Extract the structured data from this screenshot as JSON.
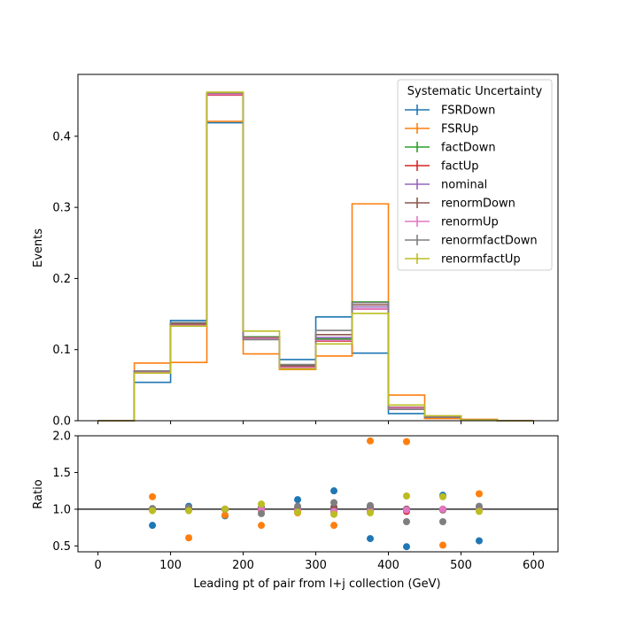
{
  "chart_data": {
    "type": "step-histogram-with-ratio",
    "xlabel": "Leading pt of pair from l+j collection (GeV)",
    "x_ticks": [
      "0",
      "100",
      "200",
      "300",
      "400",
      "500",
      "600"
    ],
    "bin_edges": [
      0,
      50,
      100,
      150,
      200,
      250,
      300,
      350,
      400,
      450,
      500,
      550,
      600
    ],
    "top": {
      "ylabel": "Events",
      "ylim": [
        0,
        0.487
      ],
      "y_ticks": [
        "0.0",
        "0.1",
        "0.2",
        "0.3",
        "0.4"
      ],
      "legend": {
        "title": "Systematic Uncertainty",
        "placement": "top-right"
      },
      "series": [
        {
          "name": "FSRDown",
          "color": "#1f77b4",
          "values": [
            0.0,
            0.054,
            0.141,
            0.419,
            0.118,
            0.086,
            0.146,
            0.095,
            0.01,
            0.004,
            0.001,
            0.0
          ]
        },
        {
          "name": "FSRUp",
          "color": "#ff7f0e",
          "values": [
            0.0,
            0.081,
            0.082,
            0.421,
            0.094,
            0.072,
            0.091,
            0.305,
            0.036,
            0.003,
            0.002,
            0.0
          ]
        },
        {
          "name": "factDown",
          "color": "#2ca02c",
          "values": [
            0.0,
            0.069,
            0.137,
            0.46,
            0.118,
            0.078,
            0.115,
            0.167,
            0.019,
            0.006,
            0.001,
            0.0
          ]
        },
        {
          "name": "factUp",
          "color": "#d62728",
          "values": [
            0.0,
            0.068,
            0.134,
            0.458,
            0.115,
            0.074,
            0.112,
            0.157,
            0.018,
            0.006,
            0.001,
            0.0
          ]
        },
        {
          "name": "nominal",
          "color": "#9467bd",
          "values": [
            0.0,
            0.069,
            0.135,
            0.459,
            0.116,
            0.076,
            0.117,
            0.16,
            0.019,
            0.006,
            0.001,
            0.0
          ]
        },
        {
          "name": "renormDown",
          "color": "#8c564b",
          "values": [
            0.0,
            0.069,
            0.136,
            0.46,
            0.117,
            0.077,
            0.121,
            0.163,
            0.019,
            0.005,
            0.001,
            0.0
          ]
        },
        {
          "name": "renormUp",
          "color": "#e377c2",
          "values": [
            0.0,
            0.068,
            0.134,
            0.459,
            0.116,
            0.075,
            0.113,
            0.157,
            0.018,
            0.006,
            0.001,
            0.0
          ]
        },
        {
          "name": "renormfactDown",
          "color": "#7f7f7f",
          "values": [
            0.0,
            0.07,
            0.138,
            0.461,
            0.114,
            0.079,
            0.127,
            0.166,
            0.016,
            0.005,
            0.001,
            0.0
          ]
        },
        {
          "name": "renormfactUp",
          "color": "#bcbd22",
          "values": [
            0.0,
            0.067,
            0.133,
            0.462,
            0.126,
            0.073,
            0.108,
            0.151,
            0.022,
            0.007,
            0.001,
            0.0
          ]
        }
      ]
    },
    "bottom": {
      "ylabel": "Ratio",
      "ylim": [
        0.42,
        2.0
      ],
      "y_ticks": [
        "0.5",
        "1.0",
        "1.5",
        "2.0"
      ],
      "reference_line": 1.0,
      "bin_centers": [
        75,
        125,
        175,
        225,
        275,
        325,
        375,
        425,
        475,
        525
      ],
      "series": [
        {
          "name": "FSRDown",
          "color": "#1f77b4",
          "values": [
            0.78,
            1.04,
            0.91,
            1.02,
            1.13,
            1.25,
            0.6,
            0.49,
            1.19,
            0.57
          ]
        },
        {
          "name": "FSRUp",
          "color": "#ff7f0e",
          "values": [
            1.17,
            0.61,
            0.92,
            0.78,
            0.95,
            0.78,
            1.93,
            1.92,
            0.51,
            1.21
          ]
        },
        {
          "name": "factDown",
          "color": "#2ca02c",
          "values": [
            1.0,
            1.01,
            1.0,
            1.02,
            1.02,
            0.98,
            1.04,
            1.0,
            1.0,
            1.0
          ]
        },
        {
          "name": "factUp",
          "color": "#d62728",
          "values": [
            0.99,
            0.99,
            1.0,
            0.99,
            0.98,
            0.96,
            0.98,
            0.97,
            1.0,
            1.0
          ]
        },
        {
          "name": "nominal",
          "color": "#9467bd",
          "values": [
            1.0,
            1.0,
            1.0,
            1.0,
            1.0,
            1.0,
            1.0,
            1.0,
            1.0,
            1.0
          ]
        },
        {
          "name": "renormDown",
          "color": "#8c564b",
          "values": [
            1.0,
            1.01,
            1.0,
            1.01,
            1.01,
            1.03,
            1.02,
            1.0,
            0.99,
            1.0
          ]
        },
        {
          "name": "renormUp",
          "color": "#e377c2",
          "values": [
            0.99,
            0.99,
            1.0,
            1.0,
            0.99,
            0.97,
            0.98,
            0.99,
            1.0,
            1.0
          ]
        },
        {
          "name": "renormfactDown",
          "color": "#7f7f7f",
          "values": [
            1.01,
            1.02,
            1.0,
            0.94,
            1.04,
            1.09,
            1.05,
            0.83,
            0.83,
            1.04
          ]
        },
        {
          "name": "renormfactUp",
          "color": "#bcbd22",
          "values": [
            0.98,
            0.98,
            1.0,
            1.07,
            0.96,
            0.93,
            0.95,
            1.18,
            1.17,
            0.97
          ]
        }
      ]
    }
  }
}
